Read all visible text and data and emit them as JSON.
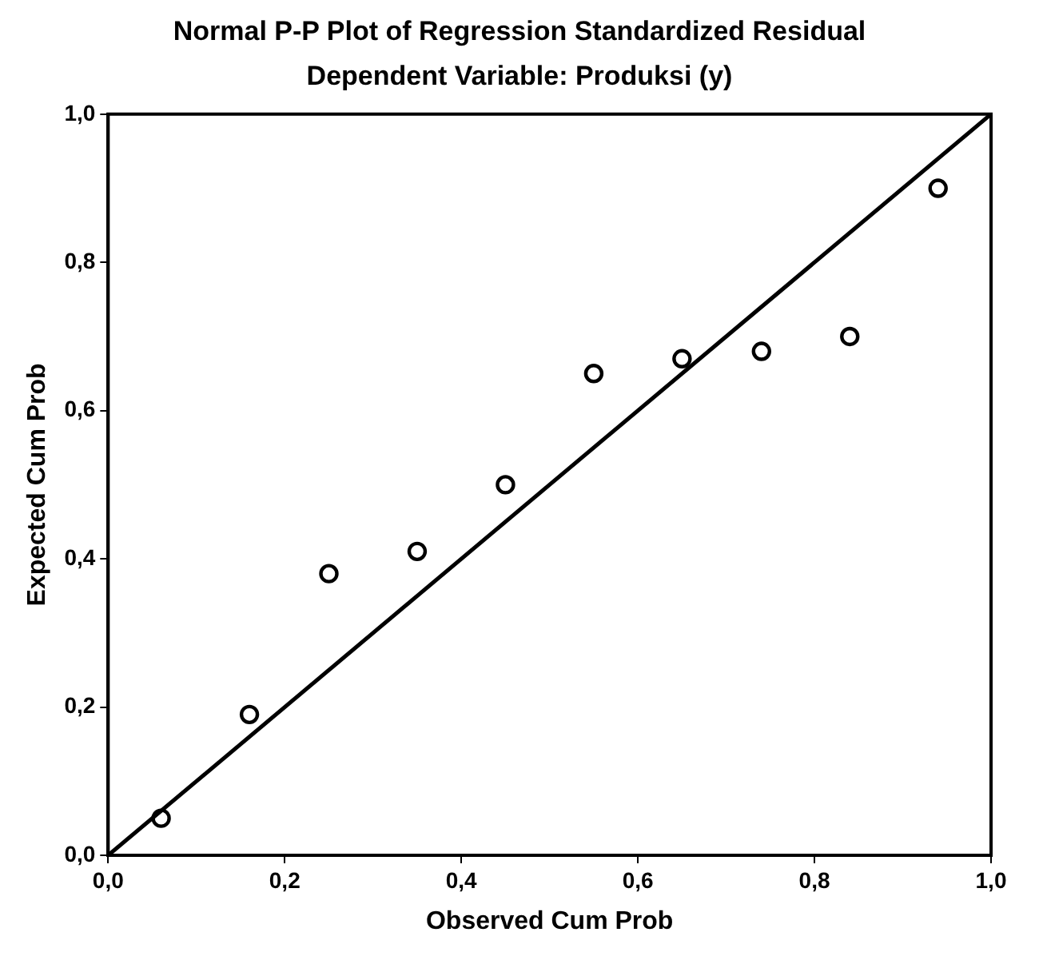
{
  "chart_data": {
    "type": "scatter",
    "title": "Normal P-P Plot of Regression Standardized Residual",
    "subtitle": "Dependent Variable: Produksi (y)",
    "xlabel": "Observed Cum Prob",
    "ylabel": "Expected Cum Prob",
    "xlim": [
      0,
      1
    ],
    "ylim": [
      0,
      1
    ],
    "xticks": [
      {
        "value": 0,
        "label": "0,0"
      },
      {
        "value": 0.2,
        "label": "0,2"
      },
      {
        "value": 0.4,
        "label": "0,4"
      },
      {
        "value": 0.6,
        "label": "0,6"
      },
      {
        "value": 0.8,
        "label": "0,8"
      },
      {
        "value": 1,
        "label": "1,0"
      }
    ],
    "yticks": [
      {
        "value": 0,
        "label": "0,0"
      },
      {
        "value": 0.2,
        "label": "0,2"
      },
      {
        "value": 0.4,
        "label": "0,4"
      },
      {
        "value": 0.6,
        "label": "0,6"
      },
      {
        "value": 0.8,
        "label": "0,8"
      },
      {
        "value": 1,
        "label": "1,0"
      }
    ],
    "grid": false,
    "legend": false,
    "marker": "circle",
    "series": [
      {
        "color": "#000000",
        "x": [
          0.06,
          0.16,
          0.25,
          0.35,
          0.45,
          0.55,
          0.65,
          0.74,
          0.84,
          0.94
        ],
        "values": [
          0.05,
          0.19,
          0.38,
          0.41,
          0.5,
          0.65,
          0.67,
          0.68,
          0.7,
          0.9
        ]
      },
      {
        "type": "line",
        "color": "#000000",
        "marker": "none",
        "line_style": "solid",
        "x": [
          0,
          1
        ],
        "values": [
          0,
          1
        ]
      }
    ]
  }
}
